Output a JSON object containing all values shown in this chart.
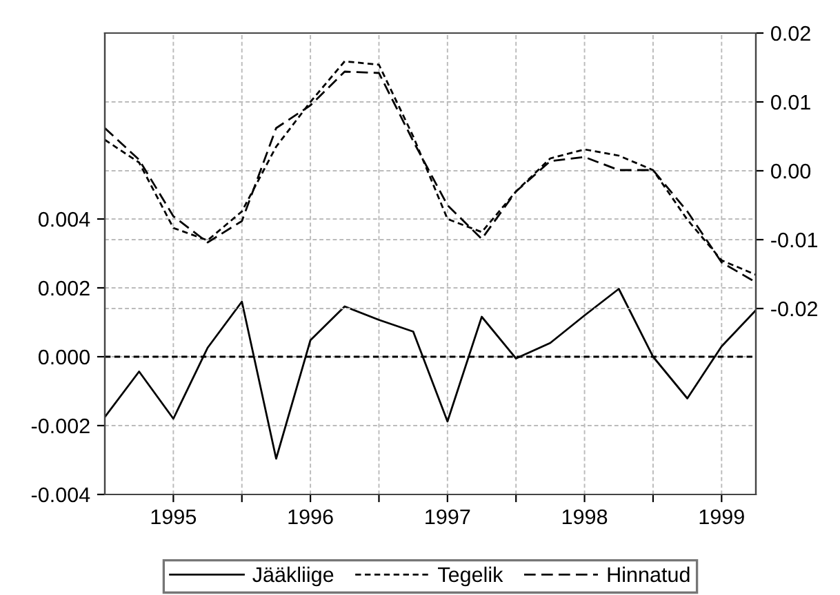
{
  "chart_data": {
    "type": "line",
    "x": [
      1994.5,
      1994.75,
      1995,
      1995.25,
      1995.5,
      1995.75,
      1996,
      1996.25,
      1996.5,
      1996.75,
      1997,
      1997.25,
      1997.5,
      1997.75,
      1998,
      1998.25,
      1998.5,
      1998.75,
      1999,
      1999.25
    ],
    "series": [
      {
        "name": "Jääkliige",
        "color": "#000000",
        "line_style": "solid",
        "values": [
          -0.00175,
          -0.00043,
          -0.0018,
          0.00026,
          0.0016,
          -0.00296,
          0.00048,
          0.00146,
          0.00107,
          0.00073,
          -0.00188,
          0.00116,
          -5e-05,
          0.0004,
          0.0012,
          0.00197,
          0.0,
          -0.00121,
          0.0003,
          0.00135
        ]
      },
      {
        "name": "Tegelik",
        "color": "#000000",
        "line_style": "dotted",
        "axis": "y2",
        "values": [
          0.0045,
          0.0012,
          -0.0083,
          -0.0101,
          -0.0059,
          0.0035,
          0.01,
          0.0159,
          0.0154,
          0.005,
          -0.007,
          -0.0089,
          -0.003,
          0.0018,
          0.0031,
          0.0022,
          0.0001,
          -0.0071,
          -0.013,
          -0.0151
        ]
      },
      {
        "name": "Hinnatud",
        "color": "#000000",
        "line_style": "dashed",
        "axis": "y2",
        "values": [
          0.0062,
          0.0016,
          -0.0066,
          -0.0104,
          -0.0073,
          0.0062,
          0.0095,
          0.0144,
          0.0142,
          0.0043,
          -0.005,
          -0.0099,
          -0.003,
          0.0014,
          0.002,
          0.0001,
          0.0001,
          -0.0059,
          -0.0133,
          -0.0162
        ]
      }
    ],
    "xlim": [
      1994.5,
      1999.25
    ],
    "xticks": [
      {
        "value": 1995,
        "label": "1995"
      },
      {
        "value": 1995.5,
        "label": null
      },
      {
        "value": 1996,
        "label": "1996"
      },
      {
        "value": 1996.5,
        "label": null
      },
      {
        "value": 1997,
        "label": "1997"
      },
      {
        "value": 1997.5,
        "label": null
      },
      {
        "value": 1998,
        "label": "1998"
      },
      {
        "value": 1998.5,
        "label": null
      },
      {
        "value": 1999,
        "label": "1999"
      }
    ],
    "ylim": [
      -0.004,
      0.0094
    ],
    "yticks": [
      {
        "value": -0.004,
        "label": "-0.004"
      },
      {
        "value": -0.002,
        "label": "-0.002"
      },
      {
        "value": 0,
        "label": "0.000"
      },
      {
        "value": 0.002,
        "label": "0.002"
      },
      {
        "value": 0.004,
        "label": "0.004"
      }
    ],
    "y2lim": [
      -0.047,
      0.02
    ],
    "y2ticks": [
      {
        "value": -0.02,
        "label": "-0.02"
      },
      {
        "value": -0.01,
        "label": "-0.01"
      },
      {
        "value": 0,
        "label": "0.00"
      },
      {
        "value": 0.01,
        "label": "0.01"
      },
      {
        "value": 0.02,
        "label": "0.02"
      }
    ],
    "ref_lines": [
      {
        "axis": "y",
        "value": 0,
        "color": "#000000",
        "line_style": "dotted"
      }
    ],
    "grid": true,
    "legend": "bottom",
    "marker": "none"
  }
}
